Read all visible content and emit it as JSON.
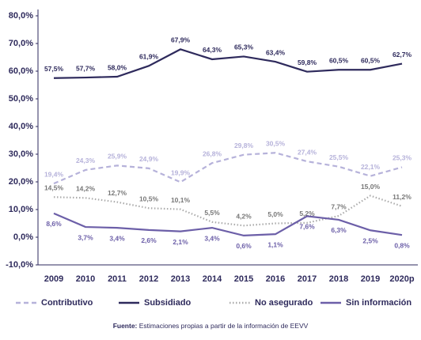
{
  "chart_data": {
    "type": "line",
    "categories": [
      "2009",
      "2010",
      "2011",
      "2012",
      "2013",
      "2014",
      "2015",
      "2016",
      "2017",
      "2018",
      "2019",
      "2020p"
    ],
    "series": [
      {
        "name": "Contributivo",
        "color": "#b6b2da",
        "dash": "dashed",
        "values": [
          19.4,
          24.3,
          25.9,
          24.9,
          19.9,
          26.8,
          29.8,
          30.5,
          27.4,
          25.5,
          22.1,
          25.3
        ],
        "value_labels": [
          "19,4%",
          "24,3%",
          "25,9%",
          "24,9%",
          "19,9%",
          "26,8%",
          "29,8%",
          "30,5%",
          "27,4%",
          "25,5%",
          "22,1%",
          "25,3%"
        ]
      },
      {
        "name": "Subsidiado",
        "color": "#2e2a5c",
        "dash": "solid",
        "values": [
          57.5,
          57.7,
          58.0,
          61.9,
          67.9,
          64.3,
          65.3,
          63.4,
          59.8,
          60.5,
          60.5,
          62.7
        ],
        "value_labels": [
          "57,5%",
          "57,7%",
          "58,0%",
          "61,9%",
          "67,9%",
          "64,3%",
          "65,3%",
          "63,4%",
          "59,8%",
          "60,5%",
          "60,5%",
          "62,7%"
        ]
      },
      {
        "name": "No asegurado",
        "color": "#ababab",
        "dash": "dotted",
        "values": [
          14.5,
          14.2,
          12.7,
          10.5,
          10.1,
          5.5,
          4.2,
          5.0,
          5.2,
          7.7,
          15.0,
          11.2
        ],
        "value_labels": [
          "14,5%",
          "14,2%",
          "12,7%",
          "10,5%",
          "10,1%",
          "5,5%",
          "4,2%",
          "5,0%",
          "5,2%",
          "7,7%",
          "15,0%",
          "11,2%"
        ]
      },
      {
        "name": "Sin información",
        "color": "#6c5fa8",
        "dash": "solid",
        "values": [
          8.6,
          3.7,
          3.4,
          2.6,
          2.1,
          3.4,
          0.6,
          1.1,
          7.6,
          6.3,
          2.5,
          0.8
        ],
        "value_labels": [
          "8,6%",
          "3,7%",
          "3,4%",
          "2,6%",
          "2,1%",
          "3,4%",
          "0,6%",
          "1,1%",
          "7,6%",
          "6,3%",
          "2,5%",
          "0,8%"
        ]
      }
    ],
    "ylim": [
      -10,
      80
    ],
    "yticks": [
      {
        "value": -10,
        "label": "-10,0%"
      },
      {
        "value": 0,
        "label": "0,0%"
      },
      {
        "value": 10,
        "label": "10,0%"
      },
      {
        "value": 20,
        "label": "20,0%"
      },
      {
        "value": 30,
        "label": "30,0%"
      },
      {
        "value": 40,
        "label": "40,0%"
      },
      {
        "value": 50,
        "label": "50,0%"
      },
      {
        "value": 60,
        "label": "60,0%"
      },
      {
        "value": 70,
        "label": "70,0%"
      },
      {
        "value": 80,
        "label": "80,0%"
      }
    ],
    "grid": false,
    "footer": {
      "label": "Fuente:",
      "text": " Estimaciones propias a partir de la información de EEVV"
    }
  }
}
